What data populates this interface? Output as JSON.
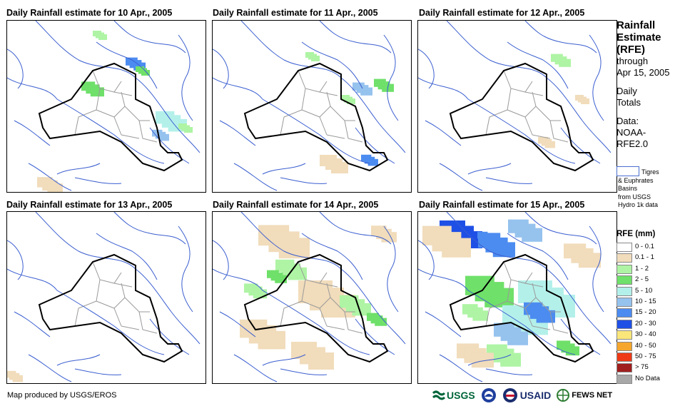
{
  "panels": [
    {
      "title": "Daily Rainfall estimate for 10 Apr., 2005"
    },
    {
      "title": "Daily Rainfall estimate for 11 Apr., 2005"
    },
    {
      "title": "Daily Rainfall estimate for 12 Apr., 2005"
    },
    {
      "title": "Daily Rainfall estimate for 13 Apr., 2005"
    },
    {
      "title": "Daily Rainfall estimate for 14 Apr., 2005"
    },
    {
      "title": "Daily Rainfall estimate for 15 Apr., 2005"
    }
  ],
  "sidebar": {
    "heading": [
      "Rainfall",
      "Estimate",
      "(RFE)"
    ],
    "through": "through",
    "date": "Apr 15, 2005",
    "daily": "Daily",
    "totals": "Totals",
    "data_label": "Data:",
    "source1": "NOAA-",
    "source2": "RFE2.0",
    "basin_lines": [
      "Tigres",
      "& Euphrates",
      "Basins",
      "from USGS",
      "Hydro 1k data"
    ]
  },
  "legend": {
    "title": "RFE (mm)",
    "classes": [
      {
        "label": "0 - 0.1",
        "color": "#ffffff"
      },
      {
        "label": "0.1 - 1",
        "color": "#f1dcbb"
      },
      {
        "label": "1 - 2",
        "color": "#aef4a4"
      },
      {
        "label": "2 - 5",
        "color": "#6fe06a"
      },
      {
        "label": "5 - 10",
        "color": "#b4f0ea"
      },
      {
        "label": "10 - 15",
        "color": "#96c2ee"
      },
      {
        "label": "15 - 20",
        "color": "#4c8cf0"
      },
      {
        "label": "20 - 30",
        "color": "#1f50e6"
      },
      {
        "label": "30 - 40",
        "color": "#fbe67a"
      },
      {
        "label": "40 - 50",
        "color": "#f6a62c"
      },
      {
        "label": "50 - 75",
        "color": "#ee3a16"
      },
      {
        "label": "> 75",
        "color": "#a01e1e"
      },
      {
        "label": "No Data",
        "color": "#a8a8a8"
      }
    ]
  },
  "footer": {
    "credit": "Map produced by USGS/EROS"
  },
  "logos": {
    "usgs": "USGS",
    "usaid": "USAID",
    "fews": "FEWS NET"
  },
  "colors": {
    "river": "#3b5fd0",
    "border": "#000000",
    "province": "#9a9a9a"
  }
}
